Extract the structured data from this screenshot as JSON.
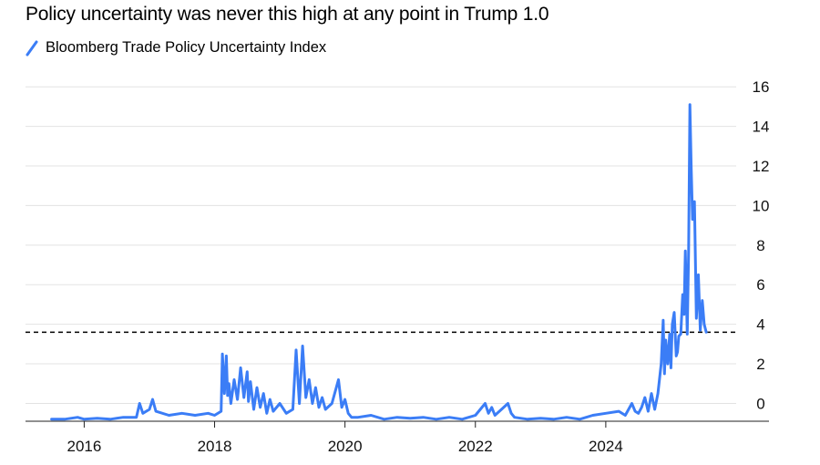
{
  "title": "Policy uncertainty was never this high at any point in Trump 1.0",
  "legend": {
    "label": "Bloomberg Trade Policy Uncertainty Index",
    "color": "#3b7df6"
  },
  "chart_data": {
    "type": "line",
    "title": "Policy uncertainty was never this high at any point in Trump 1.0",
    "xlabel": "",
    "ylabel": "",
    "x_unit": "year",
    "xlim": [
      2015.1,
      2026.0
    ],
    "ylim": [
      -0.9,
      16.7
    ],
    "y_ticks": [
      0,
      2,
      4,
      6,
      8,
      10,
      12,
      14,
      16
    ],
    "x_ticks": [
      2016,
      2018,
      2020,
      2022,
      2024
    ],
    "y_axis_side": "right",
    "grid": "horizontal",
    "reference_line": {
      "y": 3.6,
      "style": "dashed",
      "color": "#000000"
    },
    "series": [
      {
        "name": "Bloomberg Trade Policy Uncertainty Index",
        "color": "#3b7df6",
        "x": [
          2015.5,
          2015.7,
          2015.9,
          2016.0,
          2016.2,
          2016.4,
          2016.6,
          2016.8,
          2016.85,
          2016.9,
          2017.0,
          2017.05,
          2017.1,
          2017.3,
          2017.5,
          2017.7,
          2017.9,
          2018.0,
          2018.1,
          2018.12,
          2018.15,
          2018.18,
          2018.2,
          2018.22,
          2018.25,
          2018.3,
          2018.35,
          2018.4,
          2018.45,
          2018.5,
          2018.52,
          2018.55,
          2018.6,
          2018.65,
          2018.7,
          2018.75,
          2018.8,
          2018.85,
          2018.9,
          2019.0,
          2019.1,
          2019.2,
          2019.25,
          2019.3,
          2019.35,
          2019.4,
          2019.45,
          2019.5,
          2019.55,
          2019.6,
          2019.65,
          2019.7,
          2019.8,
          2019.9,
          2019.95,
          2020.0,
          2020.05,
          2020.1,
          2020.2,
          2020.4,
          2020.6,
          2020.8,
          2021.0,
          2021.2,
          2021.4,
          2021.6,
          2021.8,
          2022.0,
          2022.15,
          2022.2,
          2022.25,
          2022.3,
          2022.4,
          2022.5,
          2022.55,
          2022.6,
          2022.8,
          2023.0,
          2023.2,
          2023.4,
          2023.6,
          2023.8,
          2024.0,
          2024.2,
          2024.3,
          2024.4,
          2024.45,
          2024.5,
          2024.55,
          2024.6,
          2024.65,
          2024.7,
          2024.75,
          2024.8,
          2024.85,
          2024.88,
          2024.9,
          2024.92,
          2024.95,
          2024.98,
          2025.0,
          2025.02,
          2025.05,
          2025.08,
          2025.1,
          2025.12,
          2025.15,
          2025.18,
          2025.2,
          2025.22,
          2025.25,
          2025.27,
          2025.29,
          2025.31,
          2025.33,
          2025.36,
          2025.39,
          2025.42,
          2025.45,
          2025.48,
          2025.51,
          2025.54
        ],
        "values": [
          -0.8,
          -0.8,
          -0.7,
          -0.8,
          -0.75,
          -0.8,
          -0.7,
          -0.7,
          0.0,
          -0.5,
          -0.3,
          0.2,
          -0.4,
          -0.6,
          -0.5,
          -0.6,
          -0.5,
          -0.6,
          -0.4,
          2.5,
          0.5,
          2.4,
          0.4,
          1.0,
          0.0,
          1.2,
          0.2,
          1.8,
          0.3,
          1.6,
          0.1,
          1.1,
          -0.3,
          0.8,
          -0.2,
          0.5,
          -0.5,
          0.2,
          -0.4,
          0.0,
          -0.5,
          -0.3,
          2.7,
          0.0,
          2.9,
          0.3,
          1.2,
          0.0,
          0.8,
          -0.2,
          0.3,
          -0.3,
          0.0,
          1.2,
          -0.2,
          0.2,
          -0.5,
          -0.7,
          -0.7,
          -0.6,
          -0.8,
          -0.7,
          -0.75,
          -0.7,
          -0.8,
          -0.7,
          -0.8,
          -0.6,
          0.0,
          -0.5,
          -0.2,
          -0.6,
          -0.3,
          0.0,
          -0.5,
          -0.7,
          -0.8,
          -0.75,
          -0.8,
          -0.7,
          -0.8,
          -0.6,
          -0.5,
          -0.4,
          -0.6,
          0.0,
          -0.4,
          -0.5,
          -0.2,
          0.3,
          -0.4,
          0.5,
          -0.3,
          0.5,
          2.0,
          4.2,
          1.5,
          3.2,
          2.0,
          3.5,
          1.8,
          4.0,
          4.6,
          2.4,
          2.6,
          3.4,
          3.5,
          5.5,
          4.5,
          7.7,
          3.5,
          7.7,
          15.1,
          12.0,
          9.3,
          10.2,
          4.3,
          6.5,
          3.7,
          5.2,
          4.0,
          3.6
        ]
      }
    ]
  }
}
